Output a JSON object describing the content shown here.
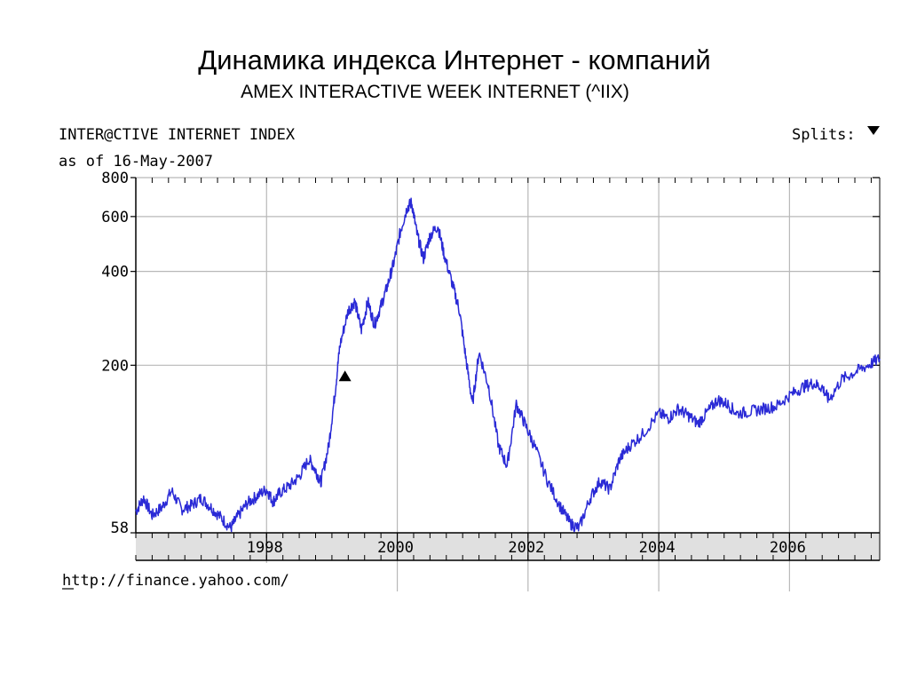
{
  "slide": {
    "title": "Динамика индекса Интернет - компаний",
    "subtitle": "AMEX INTERACTIVE WEEK INTERNET (^IIX)"
  },
  "chart_header": {
    "index_name": "INTER@CTIVE INTERNET INDEX",
    "as_of": "as of 16-May-2007",
    "splits_label": "Splits:",
    "source_url": "http://finance.yahoo.com/"
  },
  "colors": {
    "line": "#2a2ad6",
    "grid": "#b8b8b8",
    "axis_band": "#e0e0e0",
    "marker": "#000000"
  },
  "chart_data": {
    "type": "line",
    "title": "INTER@CTIVE INTERNET INDEX",
    "xlabel": "",
    "ylabel": "",
    "y_scale": "log",
    "ylim": [
      58,
      800
    ],
    "xlim": [
      1996.0,
      2007.38
    ],
    "x_ticks": [
      1998,
      2000,
      2002,
      2004,
      2006
    ],
    "y_ticks": [
      58,
      200,
      400,
      600,
      800
    ],
    "grid": true,
    "markers": [
      {
        "type": "split",
        "x": 1999.2,
        "y": 185
      }
    ],
    "series": [
      {
        "values": [
          [
            1996.0,
            68
          ],
          [
            1996.12,
            75
          ],
          [
            1996.25,
            66
          ],
          [
            1996.4,
            70
          ],
          [
            1996.55,
            79
          ],
          [
            1996.7,
            69
          ],
          [
            1996.85,
            71
          ],
          [
            1997.0,
            75
          ],
          [
            1997.15,
            70
          ],
          [
            1997.3,
            65
          ],
          [
            1997.45,
            60
          ],
          [
            1997.55,
            65
          ],
          [
            1997.7,
            72
          ],
          [
            1997.85,
            76
          ],
          [
            1998.0,
            80
          ],
          [
            1998.1,
            73
          ],
          [
            1998.2,
            78
          ],
          [
            1998.35,
            82
          ],
          [
            1998.5,
            88
          ],
          [
            1998.65,
            100
          ],
          [
            1998.75,
            92
          ],
          [
            1998.83,
            84
          ],
          [
            1998.95,
            110
          ],
          [
            1999.05,
            165
          ],
          [
            1999.12,
            230
          ],
          [
            1999.25,
            300
          ],
          [
            1999.35,
            320
          ],
          [
            1999.45,
            260
          ],
          [
            1999.55,
            320
          ],
          [
            1999.65,
            270
          ],
          [
            1999.75,
            310
          ],
          [
            1999.85,
            360
          ],
          [
            1999.95,
            430
          ],
          [
            2000.05,
            540
          ],
          [
            2000.15,
            640
          ],
          [
            2000.22,
            665
          ],
          [
            2000.3,
            530
          ],
          [
            2000.4,
            440
          ],
          [
            2000.5,
            520
          ],
          [
            2000.62,
            560
          ],
          [
            2000.72,
            450
          ],
          [
            2000.85,
            360
          ],
          [
            2000.95,
            300
          ],
          [
            2001.05,
            210
          ],
          [
            2001.15,
            150
          ],
          [
            2001.25,
            220
          ],
          [
            2001.4,
            170
          ],
          [
            2001.55,
            110
          ],
          [
            2001.68,
            95
          ],
          [
            2001.82,
            150
          ],
          [
            2001.95,
            130
          ],
          [
            2002.1,
            110
          ],
          [
            2002.3,
            85
          ],
          [
            2002.5,
            70
          ],
          [
            2002.65,
            62
          ],
          [
            2002.78,
            60
          ],
          [
            2002.95,
            75
          ],
          [
            2003.1,
            85
          ],
          [
            2003.25,
            80
          ],
          [
            2003.4,
            100
          ],
          [
            2003.55,
            110
          ],
          [
            2003.75,
            120
          ],
          [
            2004.0,
            140
          ],
          [
            2004.15,
            135
          ],
          [
            2004.3,
            145
          ],
          [
            2004.45,
            138
          ],
          [
            2004.6,
            130
          ],
          [
            2004.75,
            142
          ],
          [
            2004.9,
            155
          ],
          [
            2005.05,
            150
          ],
          [
            2005.2,
            140
          ],
          [
            2005.4,
            142
          ],
          [
            2005.6,
            145
          ],
          [
            2005.8,
            148
          ],
          [
            2006.0,
            160
          ],
          [
            2006.2,
            170
          ],
          [
            2006.35,
            175
          ],
          [
            2006.5,
            170
          ],
          [
            2006.6,
            155
          ],
          [
            2006.8,
            180
          ],
          [
            2007.0,
            190
          ],
          [
            2007.2,
            200
          ],
          [
            2007.38,
            210
          ]
        ]
      }
    ]
  }
}
